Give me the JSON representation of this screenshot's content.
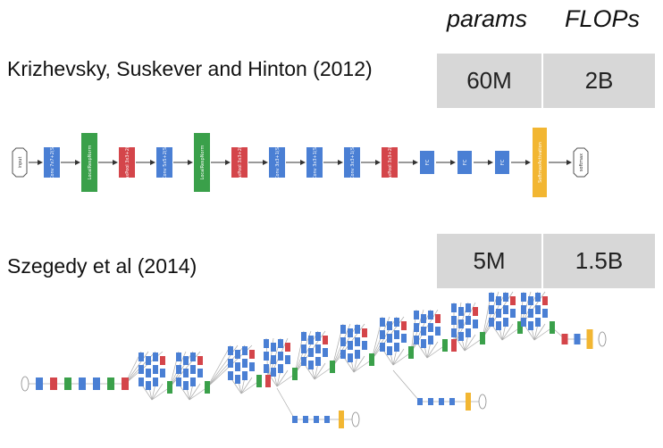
{
  "table": {
    "headers": [
      "params",
      "FLOPs"
    ],
    "rows": [
      {
        "citation": "Krizhevsky, Suskever and Hinton (2012)",
        "params": "60M",
        "flops": "2B"
      },
      {
        "citation": "Szegedy et al (2014)",
        "params": "5M",
        "flops": "1.5B"
      }
    ]
  },
  "alexnet": {
    "input_label": "input",
    "output_label": "softmax",
    "layers": [
      {
        "type": "conv",
        "label": "Conv 7x7+2(S)"
      },
      {
        "type": "norm",
        "label": "LocalRespNorm"
      },
      {
        "type": "pool",
        "label": "MaxPool 3x3+2(S)"
      },
      {
        "type": "conv",
        "label": "Conv 5x5+2(S)"
      },
      {
        "type": "norm",
        "label": "LocalRespNorm"
      },
      {
        "type": "pool",
        "label": "MaxPool 3x3+2(S)"
      },
      {
        "type": "conv",
        "label": "Conv 3x3+1(S)"
      },
      {
        "type": "conv",
        "label": "Conv 3x3+1(S)"
      },
      {
        "type": "conv",
        "label": "Conv 3x3+1(S)"
      },
      {
        "type": "pool",
        "label": "MaxPool 3x3+2(S)"
      },
      {
        "type": "fc",
        "label": "FC"
      },
      {
        "type": "fc",
        "label": "FC"
      },
      {
        "type": "fc",
        "label": "FC"
      },
      {
        "type": "softmax",
        "label": "SoftmaxActivation"
      }
    ]
  },
  "colors": {
    "conv": "#4a7fd4",
    "norm": "#3aa04a",
    "pool": "#d4454a",
    "fc": "#4a7fd4",
    "softmax": "#f2b632",
    "cell_bg": "#d7d7d7"
  }
}
